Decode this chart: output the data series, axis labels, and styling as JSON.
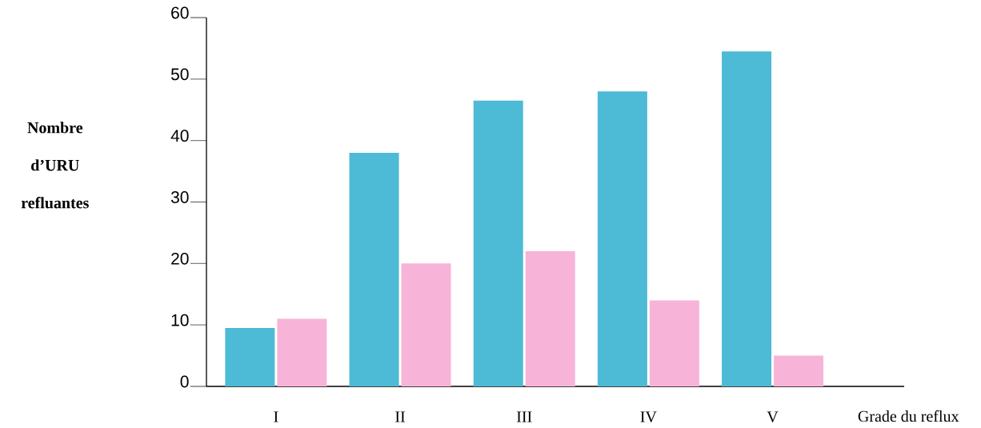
{
  "chart_data": {
    "type": "bar",
    "xlabel": "Grade du reflux",
    "ylabel": "Nombre d’URU refluantes",
    "categories": [
      "I",
      "II",
      "III",
      "IV",
      "V"
    ],
    "series": [
      {
        "color": "#4dbad6",
        "values": [
          9.5,
          38,
          46.5,
          48,
          54.5
        ]
      },
      {
        "color": "#f7b4d8",
        "values": [
          11,
          20,
          22,
          14,
          5
        ]
      }
    ],
    "ylim": [
      0,
      60
    ],
    "yticks": [
      0,
      10,
      20,
      30,
      40,
      50,
      60
    ]
  }
}
